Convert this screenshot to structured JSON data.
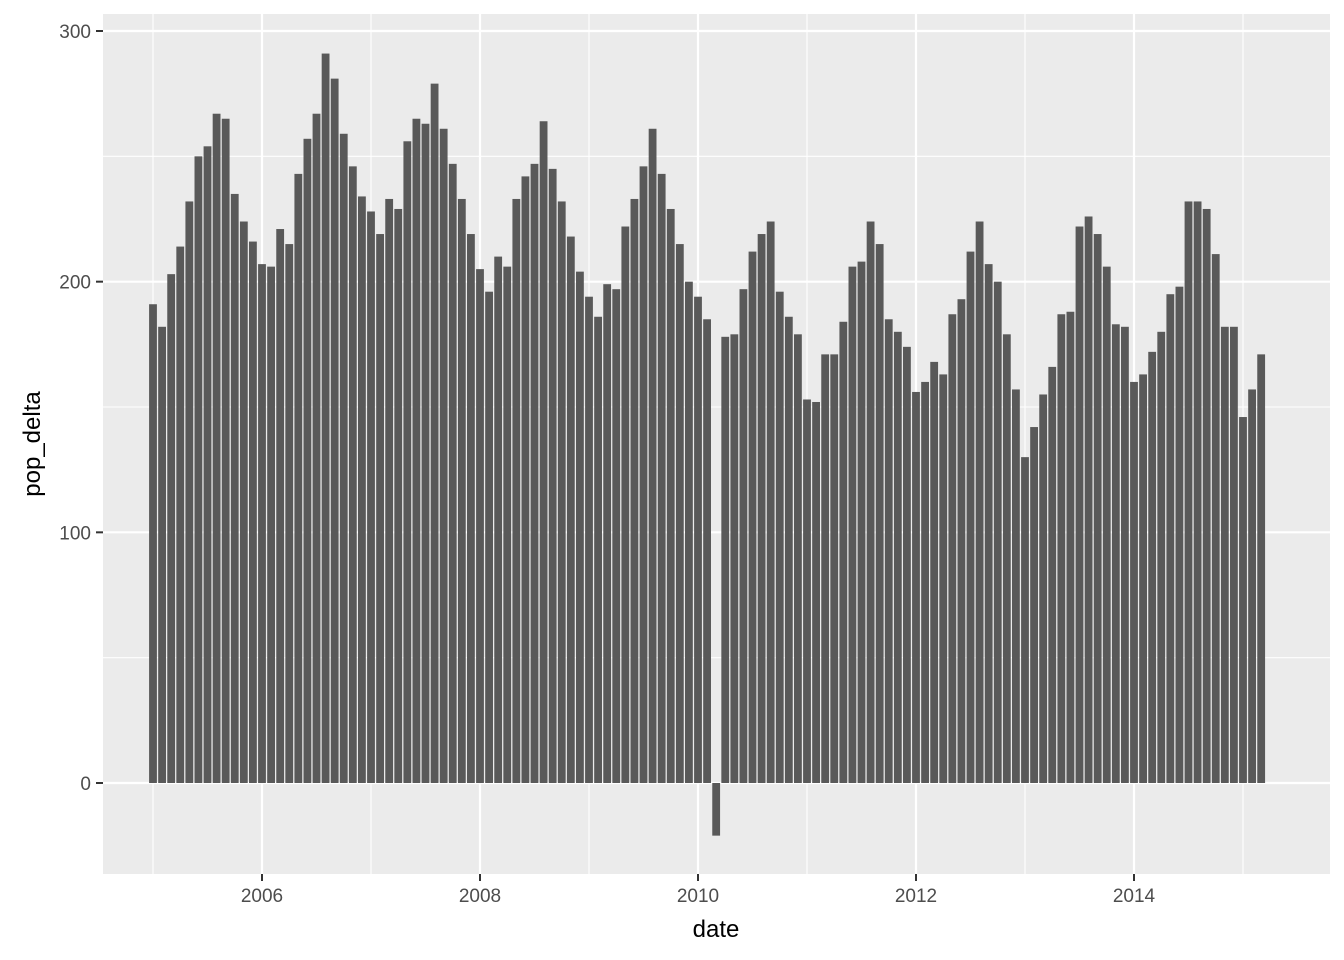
{
  "chart_data": {
    "type": "bar",
    "xlabel": "date",
    "ylabel": "pop_delta",
    "x_start": "2005-01",
    "x_end": "2015-04",
    "x_ticks": [
      "2006",
      "2008",
      "2010",
      "2012",
      "2014"
    ],
    "y_ticks": [
      "0",
      "100",
      "200",
      "300"
    ],
    "ylim": [
      -35,
      305
    ],
    "grid": true,
    "colors": {
      "panel": "#ebebeb",
      "bar": "#595959",
      "grid": "#ffffff"
    },
    "values": [
      191,
      182,
      203,
      214,
      232,
      250,
      254,
      267,
      265,
      235,
      224,
      216,
      207,
      206,
      221,
      215,
      243,
      257,
      267,
      291,
      281,
      259,
      246,
      234,
      228,
      219,
      233,
      229,
      256,
      265,
      263,
      279,
      261,
      247,
      233,
      219,
      205,
      196,
      210,
      206,
      233,
      242,
      247,
      264,
      245,
      232,
      218,
      204,
      194,
      186,
      199,
      197,
      222,
      233,
      246,
      261,
      243,
      229,
      215,
      200,
      194,
      185,
      -21,
      178,
      179,
      197,
      212,
      219,
      224,
      196,
      186,
      179,
      153,
      152,
      171,
      171,
      184,
      206,
      208,
      224,
      215,
      185,
      180,
      174,
      156,
      160,
      168,
      163,
      187,
      193,
      212,
      224,
      207,
      200,
      179,
      157,
      130,
      142,
      155,
      166,
      187,
      188,
      222,
      226,
      219,
      206,
      183,
      182,
      160,
      163,
      172,
      180,
      195,
      198,
      232,
      232,
      229,
      211,
      182,
      182,
      146,
      157,
      171
    ]
  }
}
